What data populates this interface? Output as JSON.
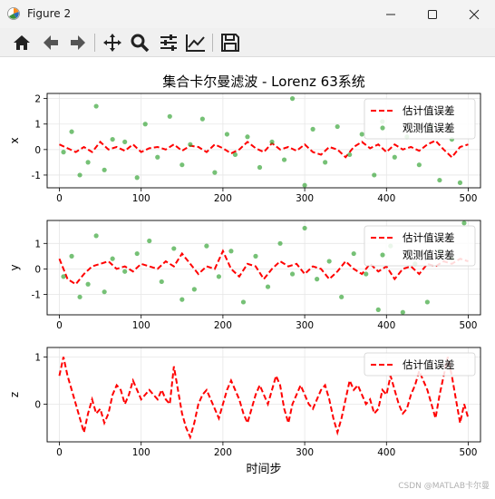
{
  "window": {
    "title": "Figure 2"
  },
  "toolbar": {
    "tools": [
      {
        "name": "home-icon"
      },
      {
        "name": "back-arrow-icon"
      },
      {
        "name": "forward-arrow-icon"
      },
      {
        "name": "pan-icon"
      },
      {
        "name": "zoom-icon"
      },
      {
        "name": "subplots-config-icon"
      },
      {
        "name": "edit-axis-icon"
      },
      {
        "name": "save-icon"
      }
    ]
  },
  "watermark": "CSDN @MATLAB卡尔曼",
  "colors": {
    "estimate": "#ff0000",
    "observed": "#2ca02c",
    "background": "#ffffff"
  },
  "chart_data": [
    {
      "type": "line",
      "title": "集合卡尔曼滤波 - Lorenz 63系统",
      "ylabel": "x",
      "xlim": [
        -15,
        515
      ],
      "ylim": [
        -1.5,
        2.2
      ],
      "xticks": [
        0,
        100,
        200,
        300,
        400,
        500
      ],
      "yticks": [
        -1,
        0,
        1,
        2
      ],
      "grid": true,
      "legend_position": "top-right",
      "series": [
        {
          "name": "估计值误差",
          "style": "dashed-line",
          "x": [
            0,
            10,
            20,
            30,
            40,
            50,
            60,
            70,
            80,
            90,
            100,
            110,
            120,
            130,
            140,
            150,
            160,
            170,
            180,
            190,
            200,
            210,
            220,
            230,
            240,
            250,
            260,
            270,
            280,
            290,
            300,
            310,
            320,
            330,
            340,
            350,
            360,
            370,
            380,
            390,
            400,
            410,
            420,
            430,
            440,
            450,
            460,
            470,
            480,
            490,
            500
          ],
          "y": [
            0.2,
            0.05,
            -0.1,
            0.1,
            -0.1,
            0.3,
            0.0,
            0.1,
            -0.05,
            0.2,
            -0.1,
            0.05,
            0.1,
            0.0,
            0.2,
            -0.05,
            0.15,
            0.1,
            -0.1,
            0.2,
            0.05,
            -0.15,
            0.0,
            0.3,
            0.05,
            -0.1,
            0.25,
            0.0,
            0.1,
            -0.05,
            0.2,
            -0.1,
            -0.2,
            0.1,
            0.0,
            -0.3,
            0.1,
            0.3,
            0.05,
            0.2,
            -0.1,
            0.2,
            0.0,
            0.1,
            -0.05,
            0.2,
            0.35,
            0.0,
            -0.3,
            0.1,
            0.2
          ]
        },
        {
          "name": "观测值误差",
          "style": "scatter",
          "x": [
            5,
            15,
            25,
            35,
            45,
            55,
            65,
            80,
            95,
            105,
            120,
            135,
            150,
            160,
            175,
            190,
            205,
            215,
            230,
            245,
            260,
            275,
            285,
            300,
            310,
            325,
            340,
            355,
            370,
            385,
            395,
            410,
            425,
            440,
            455,
            465,
            480,
            490
          ],
          "y": [
            -0.1,
            0.7,
            -1.0,
            -0.5,
            1.7,
            -0.8,
            0.4,
            0.3,
            -1.1,
            1.0,
            -0.3,
            1.3,
            -0.6,
            0.2,
            1.2,
            -0.9,
            0.6,
            -0.2,
            0.5,
            -0.7,
            0.3,
            -0.4,
            2.0,
            -1.4,
            0.8,
            -0.5,
            0.9,
            -0.2,
            0.6,
            -1.0,
            1.1,
            -0.3,
            0.5,
            -0.6,
            0.9,
            -1.2,
            0.4,
            -1.3
          ]
        }
      ]
    },
    {
      "type": "line",
      "ylabel": "y",
      "xlim": [
        -15,
        515
      ],
      "ylim": [
        -1.8,
        1.9
      ],
      "xticks": [
        0,
        100,
        200,
        300,
        400,
        500
      ],
      "yticks": [
        -1,
        0,
        1
      ],
      "grid": true,
      "legend_position": "top-right",
      "series": [
        {
          "name": "估计值误差",
          "style": "dashed-line",
          "x": [
            0,
            10,
            20,
            30,
            40,
            50,
            60,
            70,
            80,
            90,
            100,
            110,
            120,
            130,
            140,
            150,
            160,
            170,
            180,
            190,
            200,
            210,
            220,
            230,
            240,
            250,
            260,
            270,
            280,
            290,
            300,
            310,
            320,
            330,
            340,
            350,
            360,
            370,
            380,
            390,
            400,
            410,
            420,
            430,
            440,
            450,
            460,
            470,
            480,
            490,
            500
          ],
          "y": [
            0.4,
            -0.4,
            -0.6,
            -0.2,
            0.1,
            0.2,
            0.3,
            0.0,
            0.1,
            -0.1,
            0.2,
            0.1,
            0.0,
            0.3,
            0.1,
            0.6,
            0.2,
            -0.2,
            0.1,
            0.0,
            0.7,
            0.0,
            -0.3,
            0.2,
            0.1,
            -0.4,
            0.0,
            0.3,
            0.1,
            0.2,
            -0.2,
            0.1,
            0.0,
            -0.4,
            -0.1,
            0.3,
            0.0,
            -0.2,
            0.2,
            -0.1,
            0.1,
            -0.4,
            0.0,
            0.1,
            -0.2,
            0.2,
            0.1,
            0.3,
            0.2,
            0.4,
            0.3
          ]
        },
        {
          "name": "观测值误差",
          "style": "scatter",
          "x": [
            5,
            15,
            25,
            35,
            45,
            55,
            65,
            80,
            95,
            110,
            125,
            140,
            150,
            165,
            180,
            195,
            210,
            225,
            240,
            255,
            270,
            285,
            300,
            315,
            330,
            345,
            360,
            375,
            390,
            405,
            420,
            435,
            450,
            465,
            480,
            495
          ],
          "y": [
            -0.3,
            0.5,
            -1.1,
            -0.6,
            1.3,
            -0.9,
            0.4,
            -0.1,
            0.6,
            1.1,
            -0.5,
            0.8,
            -1.2,
            -0.8,
            0.9,
            -0.3,
            0.7,
            -1.3,
            0.5,
            -0.7,
            1.0,
            -0.2,
            1.6,
            -0.4,
            0.3,
            -1.1,
            0.6,
            -0.2,
            -1.6,
            0.9,
            -1.7,
            0.2,
            -1.3,
            0.7,
            0.4,
            1.8
          ]
        }
      ]
    },
    {
      "type": "line",
      "ylabel": "z",
      "xlabel": "时间步",
      "xlim": [
        -15,
        515
      ],
      "ylim": [
        -0.8,
        1.2
      ],
      "xticks": [
        0,
        100,
        200,
        300,
        400,
        500
      ],
      "yticks": [
        0,
        1
      ],
      "grid": true,
      "legend_position": "top-right",
      "series": [
        {
          "name": "估计值误差",
          "style": "dashed-line",
          "x": [
            0,
            5,
            10,
            15,
            20,
            25,
            30,
            35,
            40,
            45,
            50,
            55,
            60,
            65,
            70,
            75,
            80,
            85,
            90,
            95,
            100,
            105,
            110,
            115,
            120,
            125,
            130,
            135,
            140,
            145,
            150,
            155,
            160,
            165,
            170,
            175,
            180,
            185,
            190,
            195,
            200,
            205,
            210,
            215,
            220,
            225,
            230,
            235,
            240,
            245,
            250,
            255,
            260,
            265,
            270,
            275,
            280,
            285,
            290,
            295,
            300,
            305,
            310,
            315,
            320,
            325,
            330,
            335,
            340,
            345,
            350,
            355,
            360,
            365,
            370,
            375,
            380,
            385,
            390,
            395,
            400,
            405,
            410,
            415,
            420,
            425,
            430,
            435,
            440,
            445,
            450,
            455,
            460,
            465,
            470,
            475,
            480,
            485,
            490,
            495,
            500
          ],
          "y": [
            0.6,
            1.0,
            0.6,
            0.3,
            0.0,
            -0.3,
            -0.6,
            -0.2,
            0.1,
            -0.2,
            -0.1,
            -0.4,
            -0.2,
            0.2,
            0.4,
            0.3,
            0.0,
            0.2,
            0.5,
            0.3,
            0.1,
            0.2,
            0.3,
            0.2,
            0.1,
            0.3,
            0.1,
            0.0,
            0.8,
            0.3,
            -0.2,
            -0.5,
            -0.7,
            -0.4,
            0.0,
            0.2,
            0.3,
            0.1,
            -0.1,
            -0.3,
            0.0,
            0.3,
            0.5,
            0.3,
            0.1,
            -0.2,
            -0.4,
            -0.1,
            0.2,
            0.4,
            0.2,
            0.0,
            0.3,
            0.6,
            0.4,
            -0.1,
            -0.4,
            0.0,
            0.2,
            0.4,
            0.2,
            0.0,
            -0.1,
            0.1,
            0.3,
            0.4,
            0.1,
            -0.3,
            -0.6,
            -0.3,
            0.1,
            0.5,
            0.3,
            0.4,
            0.2,
            0.0,
            0.1,
            -0.2,
            -0.1,
            0.3,
            0.2,
            0.6,
            0.3,
            0.0,
            -0.2,
            -0.1,
            0.2,
            0.4,
            0.7,
            0.5,
            0.3,
            0.0,
            -0.3,
            0.2,
            0.6,
            1.0,
            0.6,
            0.1,
            -0.4,
            0.0,
            -0.3
          ]
        }
      ]
    }
  ]
}
